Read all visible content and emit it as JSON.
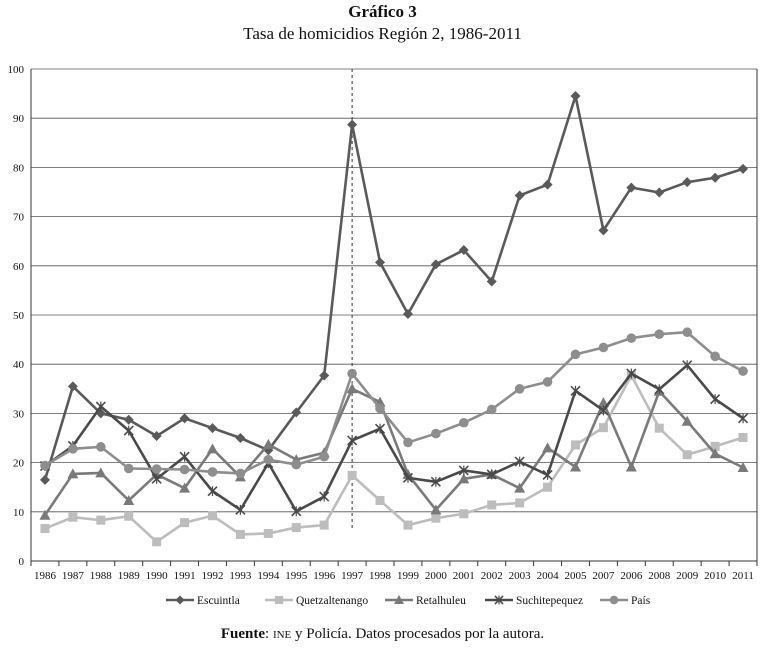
{
  "title": "Gráfico 3",
  "subtitle": "Tasa de homicidios Región 2, 1986-2011",
  "source": {
    "label": "Fuente",
    "org": "ine",
    "text": " y Policía. Datos procesados por la autora."
  },
  "chart_data": {
    "type": "line",
    "categories": [
      "1986",
      "1987",
      "1988",
      "1989",
      "1990",
      "1991",
      "1992",
      "1993",
      "1994",
      "1995",
      "1996",
      "1997",
      "1998",
      "1999",
      "2000",
      "2001",
      "2002",
      "2003",
      "2004",
      "2005",
      "2007",
      "2006",
      "2008",
      "2009",
      "2010",
      "2011"
    ],
    "ylim": [
      0,
      100
    ],
    "yticks": [
      0,
      10,
      20,
      30,
      40,
      50,
      60,
      70,
      80,
      90,
      100
    ],
    "grid": true,
    "legend_position": "bottom",
    "reference_line_category": "1997",
    "series": [
      {
        "name": "Escuintla",
        "marker": "diamond",
        "color": "#5a5a5a",
        "values": [
          16.5,
          35.5,
          30,
          28.7,
          25.4,
          29,
          27,
          25,
          22.5,
          30.2,
          37.7,
          88.7,
          60.7,
          50.2,
          60.3,
          63.2,
          56.8,
          74.3,
          76.5,
          94.5,
          67.2,
          75.9,
          74.9,
          77,
          77.9,
          79.7
        ]
      },
      {
        "name": "Quetzaltenango",
        "marker": "square",
        "color": "#bdbdbd",
        "values": [
          6.6,
          8.9,
          8.3,
          9.1,
          3.9,
          7.8,
          9.2,
          5.4,
          5.6,
          6.8,
          7.3,
          17.4,
          12.3,
          7.3,
          8.7,
          9.6,
          11.4,
          11.8,
          15,
          23.6,
          27.1,
          37.7,
          27,
          21.6,
          23.3,
          25.1
        ]
      },
      {
        "name": "Retalhuleu",
        "marker": "triangle",
        "color": "#7a7a7a",
        "values": [
          9.3,
          17.7,
          17.9,
          12.3,
          17.6,
          14.8,
          22.8,
          17.1,
          23.7,
          20.6,
          22,
          35,
          32.3,
          17.6,
          10.4,
          16.7,
          17.6,
          14.8,
          23,
          19.1,
          32.2,
          19.1,
          34.5,
          28.4,
          21.8,
          19
        ]
      },
      {
        "name": "Suchitepequez",
        "marker": "x",
        "color": "#4a4a4a",
        "values": [
          19.3,
          23.4,
          31.4,
          26.5,
          16.7,
          21.2,
          14.2,
          10.4,
          19.9,
          10.1,
          13.1,
          24.5,
          26.9,
          16.9,
          16.1,
          18.4,
          17.6,
          20.2,
          17.5,
          34.6,
          30.6,
          38.1,
          34.9,
          39.8,
          32.9,
          29
        ]
      },
      {
        "name": "País",
        "marker": "circle",
        "color": "#8e8e8e",
        "values": [
          19.4,
          22.8,
          23.2,
          18.8,
          18.7,
          18.6,
          18.1,
          17.8,
          20.6,
          19.6,
          21.2,
          38.1,
          31,
          24.1,
          25.9,
          28.1,
          30.8,
          35,
          36.4,
          42,
          43.4,
          45.3,
          46.1,
          46.5,
          41.6,
          38.6
        ]
      }
    ]
  }
}
